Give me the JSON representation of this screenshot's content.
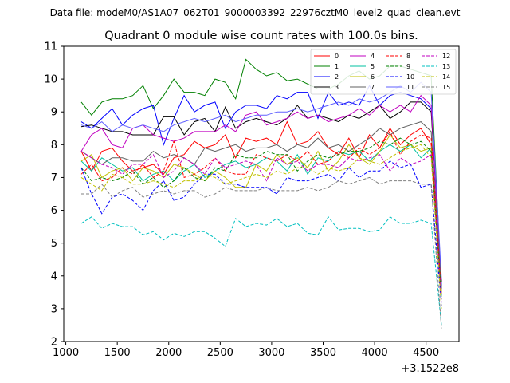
{
  "chart_data": {
    "type": "line",
    "suptitle": "Data file: modeM0/AS1A07_062T01_9000003392_22976cztM0_level2_quad_clean.evt",
    "title": "Quadrant 0 module wise count rates with 100.0s bins.",
    "xlabel": "",
    "ylabel": "",
    "x_offset_label": "+3.1522e8",
    "xlim": [
      980,
      4820
    ],
    "ylim": [
      2,
      11
    ],
    "x_ticks": [
      1000,
      1500,
      2000,
      2500,
      3000,
      3500,
      4000,
      4500
    ],
    "y_ticks": [
      2,
      3,
      4,
      5,
      6,
      7,
      8,
      9,
      10,
      11
    ],
    "x": [
      1150,
      1250,
      1350,
      1450,
      1550,
      1650,
      1750,
      1850,
      1950,
      2050,
      2150,
      2250,
      2350,
      2450,
      2550,
      2650,
      2750,
      2850,
      2950,
      3050,
      3150,
      3250,
      3350,
      3450,
      3550,
      3650,
      3750,
      3850,
      3950,
      4050,
      4150,
      4250,
      4350,
      4450,
      4550,
      4650
    ],
    "series": [
      {
        "name": "0",
        "color": "#ff0000",
        "dash": "solid",
        "values": [
          7.8,
          7.2,
          7.8,
          7.9,
          7.5,
          7.2,
          7.3,
          7.4,
          7.1,
          7.6,
          7.7,
          8.1,
          7.9,
          8.0,
          8.3,
          7.6,
          8.2,
          8.1,
          8.2,
          8.0,
          8.7,
          8.0,
          8.1,
          8.4,
          7.9,
          7.7,
          8.2,
          7.6,
          8.3,
          7.9,
          8.5,
          8.0,
          8.3,
          8.5,
          8.0,
          3.8
        ]
      },
      {
        "name": "1",
        "color": "#008000",
        "dash": "solid",
        "values": [
          9.3,
          8.9,
          9.3,
          9.4,
          9.4,
          9.5,
          9.8,
          9.1,
          9.5,
          10.0,
          9.6,
          9.6,
          9.5,
          10.0,
          9.9,
          9.4,
          10.6,
          10.3,
          10.1,
          10.2,
          9.95,
          10.0,
          9.85,
          9.7,
          9.7,
          9.85,
          10.1,
          10.25,
          10.0,
          10.1,
          10.4,
          10.4,
          10.3,
          10.2,
          10.1,
          3.6
        ]
      },
      {
        "name": "2",
        "color": "#0000ff",
        "dash": "solid",
        "values": [
          8.7,
          8.5,
          8.8,
          9.1,
          8.6,
          8.9,
          9.1,
          9.2,
          8.0,
          8.8,
          9.5,
          9.0,
          9.2,
          9.3,
          8.5,
          9.0,
          9.2,
          9.2,
          9.1,
          9.5,
          9.4,
          9.6,
          9.6,
          8.8,
          9.6,
          9.2,
          9.3,
          9.2,
          9.8,
          9.2,
          9.5,
          9.6,
          9.5,
          9.4,
          9.1,
          3.7
        ]
      },
      {
        "name": "3",
        "color": "#000000",
        "dash": "solid",
        "values": [
          8.55,
          8.6,
          8.5,
          8.4,
          8.4,
          8.3,
          8.3,
          8.3,
          8.85,
          8.85,
          8.3,
          8.7,
          8.8,
          8.4,
          9.15,
          8.5,
          8.7,
          8.8,
          8.7,
          8.6,
          8.8,
          9.2,
          8.8,
          8.9,
          8.8,
          8.7,
          8.9,
          8.8,
          9.0,
          9.2,
          8.8,
          9.0,
          9.3,
          9.3,
          9.0,
          3.8
        ]
      },
      {
        "name": "4",
        "color": "#c000c0",
        "dash": "solid",
        "values": [
          7.8,
          8.3,
          8.5,
          8.0,
          7.9,
          8.5,
          8.6,
          8.3,
          8.2,
          8.1,
          8.2,
          8.4,
          8.4,
          8.4,
          8.6,
          8.4,
          8.9,
          9.0,
          8.6,
          8.7,
          8.8,
          9.0,
          8.8,
          8.9,
          8.7,
          8.8,
          8.9,
          9.1,
          8.9,
          9.2,
          9.0,
          9.2,
          9.0,
          9.5,
          9.2,
          3.5
        ]
      },
      {
        "name": "5",
        "color": "#00c0a0",
        "dash": "solid",
        "values": [
          7.5,
          7.2,
          7.6,
          7.4,
          7.2,
          7.3,
          6.9,
          7.1,
          7.2,
          6.9,
          7.2,
          7.4,
          7.0,
          7.2,
          7.4,
          7.5,
          7.3,
          7.4,
          7.6,
          7.5,
          7.2,
          7.7,
          7.1,
          7.6,
          7.5,
          7.8,
          7.7,
          7.8,
          7.5,
          7.8,
          8.0,
          7.8,
          8.0,
          7.6,
          7.9,
          3.4
        ]
      },
      {
        "name": "6",
        "color": "#c0c000",
        "dash": "solid",
        "values": [
          7.5,
          7.7,
          7.0,
          7.2,
          7.3,
          6.9,
          7.3,
          7.2,
          7.0,
          7.4,
          7.3,
          7.1,
          6.9,
          7.2,
          7.0,
          6.7,
          6.7,
          7.4,
          7.2,
          7.7,
          7.4,
          7.6,
          7.3,
          7.8,
          7.2,
          7.5,
          8.0,
          7.6,
          7.4,
          7.8,
          8.3,
          7.9,
          8.0,
          7.8,
          7.9,
          3.5
        ]
      },
      {
        "name": "7",
        "color": "#606060",
        "dash": "solid",
        "values": [
          7.8,
          7.6,
          7.4,
          7.6,
          7.6,
          7.5,
          7.5,
          7.8,
          7.6,
          7.7,
          7.6,
          7.4,
          7.9,
          7.8,
          7.9,
          8.0,
          7.8,
          7.9,
          7.9,
          8.0,
          7.8,
          8.0,
          7.9,
          8.2,
          7.9,
          8.0,
          7.8,
          8.0,
          8.2,
          8.5,
          8.3,
          8.5,
          8.6,
          8.7,
          8.4,
          3.6
        ]
      },
      {
        "name": "8",
        "color": "#ff0000",
        "dash": "dashed",
        "values": [
          7.1,
          7.4,
          6.9,
          7.0,
          7.3,
          7.1,
          7.4,
          7.0,
          7.2,
          8.1,
          7.0,
          7.1,
          7.3,
          7.6,
          7.2,
          7.1,
          7.1,
          7.7,
          7.6,
          7.5,
          7.7,
          7.5,
          7.8,
          7.4,
          7.5,
          7.8,
          7.6,
          7.9,
          7.7,
          7.9,
          8.4,
          7.7,
          8.1,
          8.3,
          8.2,
          3.4
        ]
      },
      {
        "name": "9",
        "color": "#008000",
        "dash": "dashed",
        "values": [
          7.3,
          6.9,
          7.0,
          6.9,
          7.0,
          7.2,
          6.8,
          7.0,
          6.7,
          6.9,
          7.3,
          7.0,
          6.9,
          7.3,
          7.2,
          7.7,
          7.6,
          7.6,
          7.8,
          7.7,
          7.7,
          7.2,
          7.5,
          7.7,
          7.6,
          7.7,
          7.8,
          7.8,
          7.9,
          8.1,
          8.0,
          8.2,
          8.0,
          8.1,
          7.8,
          3.3
        ]
      },
      {
        "name": "10",
        "color": "#0000ff",
        "dash": "dashed",
        "values": [
          7.3,
          6.5,
          5.9,
          6.4,
          6.5,
          6.3,
          6.0,
          6.6,
          6.9,
          6.3,
          6.4,
          6.8,
          7.1,
          7.1,
          6.8,
          6.8,
          6.7,
          6.7,
          6.7,
          6.5,
          7.0,
          6.9,
          6.9,
          7.0,
          7.1,
          6.9,
          7.3,
          7.0,
          7.2,
          7.2,
          7.5,
          7.3,
          7.4,
          6.7,
          6.8,
          3.1
        ]
      },
      {
        "name": "11",
        "color": "#6060ff",
        "dash": "solid",
        "values": [
          8.6,
          8.5,
          8.7,
          8.4,
          8.6,
          8.5,
          8.6,
          8.5,
          8.4,
          8.6,
          8.7,
          8.8,
          8.7,
          8.8,
          8.9,
          8.7,
          8.8,
          8.9,
          8.9,
          9.0,
          9.0,
          9.1,
          9.0,
          9.1,
          9.2,
          9.3,
          9.2,
          9.4,
          9.3,
          9.4,
          9.6,
          9.8,
          9.6,
          9.9,
          9.6,
          3.9
        ]
      },
      {
        "name": "12",
        "color": "#c000c0",
        "dash": "dashed",
        "values": [
          7.8,
          7.6,
          7.4,
          7.3,
          7.1,
          7.4,
          7.4,
          7.7,
          7.0,
          7.2,
          7.6,
          7.4,
          7.1,
          7.6,
          7.3,
          7.4,
          7.5,
          7.4,
          6.9,
          7.6,
          7.4,
          7.5,
          7.2,
          7.4,
          7.4,
          7.3,
          7.6,
          7.5,
          7.6,
          7.7,
          7.2,
          7.6,
          7.4,
          7.5,
          7.7,
          3.2
        ]
      },
      {
        "name": "13",
        "color": "#00c0c0",
        "dash": "dashed",
        "values": [
          5.6,
          5.8,
          5.45,
          5.6,
          5.5,
          5.5,
          5.25,
          5.35,
          5.1,
          5.3,
          5.2,
          5.35,
          5.35,
          5.15,
          4.9,
          5.75,
          5.5,
          5.6,
          5.55,
          5.75,
          5.5,
          5.6,
          5.3,
          5.25,
          5.8,
          5.4,
          5.45,
          5.45,
          5.35,
          5.4,
          5.8,
          5.6,
          5.6,
          5.7,
          5.6,
          2.5
        ]
      },
      {
        "name": "14",
        "color": "#c0c000",
        "dash": "dashed",
        "values": [
          7.0,
          6.8,
          6.6,
          7.1,
          7.0,
          6.8,
          6.8,
          6.9,
          6.8,
          6.7,
          6.9,
          6.9,
          7.1,
          7.0,
          6.8,
          6.9,
          7.0,
          7.1,
          7.0,
          7.2,
          7.1,
          7.3,
          7.3,
          7.1,
          7.3,
          7.2,
          7.3,
          7.6,
          7.5,
          7.4,
          7.6,
          7.8,
          7.9,
          8.0,
          7.6,
          3.0
        ]
      },
      {
        "name": "15",
        "color": "#808080",
        "dash": "dashed",
        "values": [
          6.5,
          6.5,
          6.8,
          6.4,
          6.6,
          6.7,
          6.4,
          6.5,
          6.6,
          6.5,
          6.6,
          6.6,
          6.4,
          6.5,
          6.7,
          6.6,
          6.6,
          6.6,
          6.7,
          6.6,
          6.6,
          6.6,
          6.7,
          6.6,
          6.7,
          6.9,
          6.8,
          6.9,
          7.0,
          6.8,
          6.9,
          6.9,
          6.9,
          6.8,
          6.8,
          2.4
        ]
      }
    ]
  }
}
